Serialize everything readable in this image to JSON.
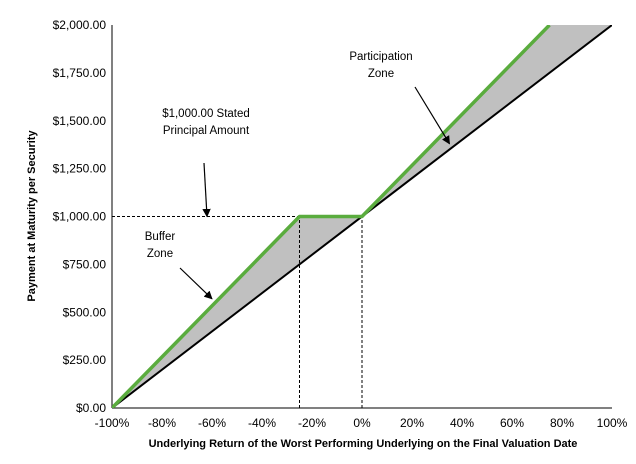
{
  "chart_data": {
    "type": "line",
    "xlabel": "Underlying Return of the Worst Performing Underlying on the Final Valuation Date",
    "ylabel": "Payment at Maturity per Security",
    "xlim": [
      -100,
      100
    ],
    "ylim": [
      0,
      2000
    ],
    "x_ticks": [
      "-100%",
      "-80%",
      "-60%",
      "-40%",
      "-20%",
      "0%",
      "20%",
      "40%",
      "60%",
      "80%",
      "100%"
    ],
    "y_ticks": [
      "$0.00",
      "$250.00",
      "$500.00",
      "$750.00",
      "$1,000.00",
      "$1,250.00",
      "$1,500.00",
      "$1,750.00",
      "$2,000.00"
    ],
    "grid": false,
    "colors": {
      "security": "#5aac3e",
      "underlying": "#000000",
      "fill": "#c0c0c0",
      "dashed": "#000000"
    },
    "series": [
      {
        "x": [
          -100,
          -25,
          0,
          75
        ],
        "y": [
          0,
          1000,
          1000,
          2000
        ],
        "color": "#5aac3e"
      },
      {
        "x": [
          -100,
          100
        ],
        "y": [
          0,
          2000
        ],
        "color": "#000000"
      }
    ],
    "reference_lines": [
      {
        "orientation": "horizontal",
        "y": 1000,
        "x_from": -100,
        "x_to": 0
      },
      {
        "orientation": "vertical",
        "x": -25,
        "y_from": 0,
        "y_to": 1000
      },
      {
        "orientation": "vertical",
        "x": 0,
        "y_from": 0,
        "y_to": 1000
      }
    ],
    "annotations": [
      {
        "lines": [
          "Participation",
          "Zone"
        ],
        "arrow_to": [
          35,
          1380
        ]
      },
      {
        "lines": [
          "$1,000.00 Stated",
          "Principal Amount"
        ],
        "arrow_to": [
          -62,
          1000
        ]
      },
      {
        "lines": [
          "Buffer",
          "Zone"
        ],
        "arrow_to": [
          -60,
          570
        ]
      }
    ]
  }
}
